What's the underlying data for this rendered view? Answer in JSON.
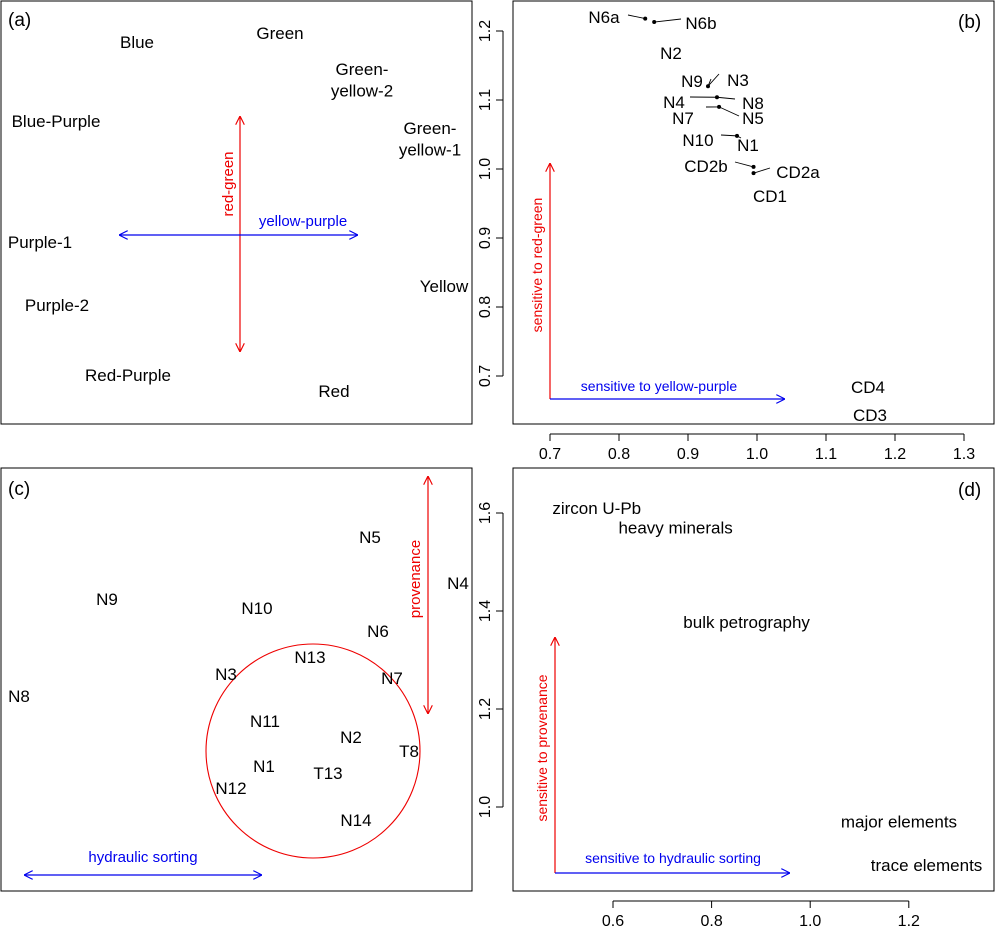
{
  "colors": {
    "axis": "#000000",
    "red": "#ee0000",
    "blue": "#0000ee",
    "text": "#000000"
  },
  "chart_data": [
    {
      "type": "scatter",
      "panel_label": "(a)",
      "labels": [
        "Blue",
        "Green",
        "Green-\nyellow-2",
        "Blue-Purple",
        "Green-\nyellow-1",
        "Purple-1",
        "Purple-2",
        "Yellow",
        "Red-Purple",
        "Red"
      ],
      "arrows": [
        {
          "label": "red-green",
          "color": "red",
          "orientation": "vertical"
        },
        {
          "label": "yellow-purple",
          "color": "blue",
          "orientation": "horizontal"
        }
      ]
    },
    {
      "type": "scatter",
      "panel_label": "(b)",
      "xlim": [
        0.65,
        1.35
      ],
      "ylim": [
        0.65,
        1.24
      ],
      "xticks": [
        "0.7",
        "0.8",
        "0.9",
        "1.0",
        "1.1",
        "1.2",
        "1.3"
      ],
      "yticks": [
        "0.7",
        "0.8",
        "0.9",
        "1.0",
        "1.1",
        "1.2"
      ],
      "points": [
        {
          "name": "N6a",
          "x": 0.838,
          "y": 1.218
        },
        {
          "name": "N6b",
          "x": 0.851,
          "y": 1.213
        },
        {
          "name": "N2",
          "x": 0.883,
          "y": 1.172
        },
        {
          "name": "N9",
          "x": 0.929,
          "y": 1.12
        },
        {
          "name": "N3",
          "x": 0.929,
          "y": 1.12
        },
        {
          "name": "N4",
          "x": 0.942,
          "y": 1.104
        },
        {
          "name": "N8",
          "x": 0.942,
          "y": 1.104
        },
        {
          "name": "N7",
          "x": 0.945,
          "y": 1.09
        },
        {
          "name": "N5",
          "x": 0.945,
          "y": 1.09
        },
        {
          "name": "N10",
          "x": 0.971,
          "y": 1.048
        },
        {
          "name": "N1",
          "x": 0.971,
          "y": 1.048
        },
        {
          "name": "CD2b",
          "x": 0.995,
          "y": 1.003
        },
        {
          "name": "CD2a",
          "x": 0.995,
          "y": 0.994
        },
        {
          "name": "CD1",
          "x": 1.019,
          "y": 0.966
        },
        {
          "name": "CD4",
          "x": 1.155,
          "y": 0.692
        },
        {
          "name": "CD3",
          "x": 1.156,
          "y": 0.652
        }
      ],
      "arrows": [
        {
          "label": "sensitive to red-green",
          "color": "red",
          "orientation": "vertical"
        },
        {
          "label": "sensitive to yellow-purple",
          "color": "blue",
          "orientation": "horizontal"
        }
      ]
    },
    {
      "type": "scatter",
      "panel_label": "(c)",
      "labels": [
        "N5",
        "N4",
        "N9",
        "N10",
        "N6",
        "N13",
        "N3",
        "N7",
        "N8",
        "N11",
        "N2",
        "T8",
        "N1",
        "T13",
        "N12",
        "N14"
      ],
      "arrows": [
        {
          "label": "provenance",
          "color": "red",
          "orientation": "vertical"
        },
        {
          "label": "hydraulic sorting",
          "color": "blue",
          "orientation": "horizontal"
        }
      ]
    },
    {
      "type": "scatter",
      "panel_label": "(d)",
      "xlim": [
        0.4,
        1.38
      ],
      "ylim": [
        0.84,
        1.67
      ],
      "xticks": [
        "0.6",
        "0.8",
        "1.0",
        "1.2"
      ],
      "yticks": [
        "1.0",
        "1.2",
        "1.4",
        "1.6"
      ],
      "points": [
        {
          "name": "zircon U-Pb",
          "x": 0.567,
          "y": 1.61
        },
        {
          "name": "heavy minerals",
          "x": 0.727,
          "y": 1.57
        },
        {
          "name": "bulk petrography",
          "x": 0.871,
          "y": 1.378
        },
        {
          "name": "major elements",
          "x": 1.18,
          "y": 0.97
        },
        {
          "name": "trace elements",
          "x": 1.236,
          "y": 0.882
        }
      ],
      "arrows": [
        {
          "label": "sensitive to provenance",
          "color": "red",
          "orientation": "vertical"
        },
        {
          "label": "sensitive to hydraulic sorting",
          "color": "blue",
          "orientation": "horizontal"
        }
      ]
    }
  ]
}
